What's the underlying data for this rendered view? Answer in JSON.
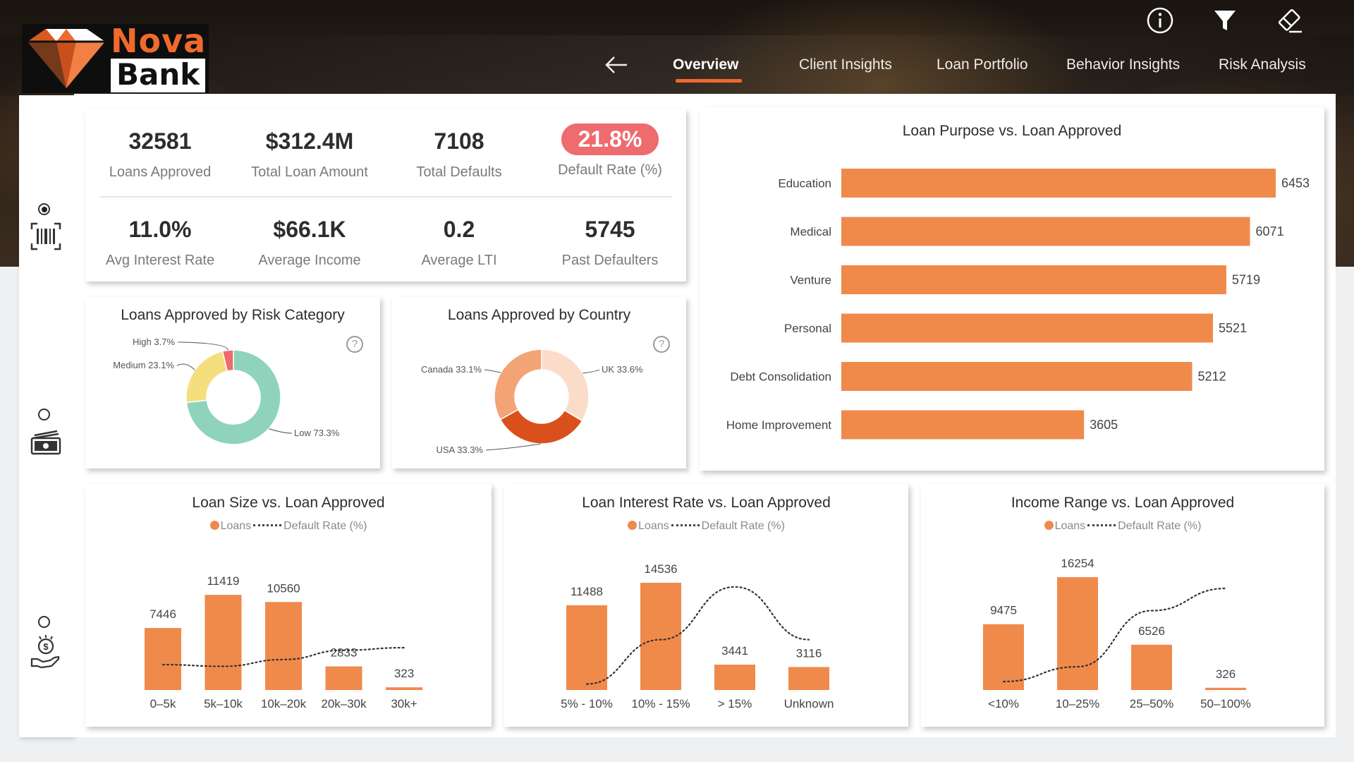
{
  "brand": {
    "line1": "Nova",
    "line2": "Bank"
  },
  "top_icons": [
    "info-icon",
    "filter-icon",
    "eraser-icon"
  ],
  "nav": {
    "tabs": [
      {
        "label": "Overview",
        "active": true
      },
      {
        "label": "Client Insights",
        "active": false
      },
      {
        "label": "Loan Portfolio",
        "active": false
      },
      {
        "label": "Behavior Insights",
        "active": false
      },
      {
        "label": "Risk Analysis",
        "active": false
      }
    ]
  },
  "sidebar": {
    "items": [
      {
        "icon": "barcode-icon",
        "selected": true
      },
      {
        "icon": "cash-icon",
        "selected": false
      },
      {
        "icon": "money-hand-icon",
        "selected": false
      }
    ]
  },
  "kpis": [
    {
      "value": "32581",
      "label": "Loans Approved"
    },
    {
      "value": "$312.4M",
      "label": "Total Loan Amount"
    },
    {
      "value": "7108",
      "label": "Total Defaults"
    },
    {
      "value": "21.8%",
      "label": "Default Rate (%)",
      "highlight": "#ee6b6e"
    },
    {
      "value": "11.0%",
      "label": "Avg Interest Rate"
    },
    {
      "value": "$66.1K",
      "label": "Average Income"
    },
    {
      "value": "0.2",
      "label": "Average LTI"
    },
    {
      "value": "5745",
      "label": "Past Defaulters"
    }
  ],
  "colors": {
    "accent": "#ef6a2c",
    "bar": "#f08a4b",
    "risk_low": "#8fd3bd",
    "risk_medium": "#f5de7d",
    "risk_high": "#ee6b6e",
    "country_uk": "#fbdcc8",
    "country_canada": "#f3a477",
    "country_usa": "#d9501c"
  },
  "legend": {
    "loans": "Loans",
    "default_rate": "Default Rate (%)"
  },
  "chart_data": [
    {
      "id": "risk",
      "type": "pie",
      "title": "Loans Approved by Risk Category",
      "donut": true,
      "slices": [
        {
          "label": "Low",
          "value": 73.3,
          "text": "Low 73.3%"
        },
        {
          "label": "Medium",
          "value": 23.1,
          "text": "Medium 23.1%"
        },
        {
          "label": "High",
          "value": 3.7,
          "text": "High 3.7%"
        }
      ]
    },
    {
      "id": "country",
      "type": "pie",
      "title": "Loans Approved by Country",
      "donut": true,
      "slices": [
        {
          "label": "UK",
          "value": 33.6,
          "text": "UK 33.6%"
        },
        {
          "label": "USA",
          "value": 33.3,
          "text": "USA 33.3%"
        },
        {
          "label": "Canada",
          "value": 33.1,
          "text": "Canada 33.1%"
        }
      ]
    },
    {
      "id": "purpose",
      "type": "bar",
      "orientation": "horizontal",
      "title": "Loan Purpose vs. Loan Approved",
      "categories": [
        "Education",
        "Medical",
        "Venture",
        "Personal",
        "Debt Consolidation",
        "Home Improvement"
      ],
      "values": [
        6453,
        6071,
        5719,
        5521,
        5212,
        3605
      ],
      "xlim": [
        0,
        6453
      ]
    },
    {
      "id": "size",
      "type": "bar",
      "title": "Loan Size vs. Loan Approved",
      "categories": [
        "0–5k",
        "5k–10k",
        "10k–20k",
        "20k–30k",
        "30k+"
      ],
      "series": [
        {
          "name": "Loans",
          "values": [
            7446,
            11419,
            10560,
            2833,
            323
          ]
        },
        {
          "name": "Default Rate (%)",
          "type": "line",
          "style": "dotted",
          "values": [
            0.3,
            0.28,
            0.36,
            0.47,
            0.5
          ]
        }
      ],
      "ylim": [
        0,
        16254
      ]
    },
    {
      "id": "interest",
      "type": "bar",
      "title": "Loan Interest Rate vs. Loan Approved",
      "categories": [
        "5% - 10%",
        "10% - 15%",
        "> 15%",
        "Unknown"
      ],
      "series": [
        {
          "name": "Loans",
          "values": [
            11488,
            14536,
            3441,
            3116
          ]
        },
        {
          "name": "Default Rate (%)",
          "type": "line",
          "style": "dotted",
          "values": [
            0.05,
            0.42,
            0.86,
            0.42
          ]
        }
      ],
      "ylim": [
        0,
        16254
      ]
    },
    {
      "id": "income",
      "type": "bar",
      "title": "Income Range vs. Loan Approved",
      "categories": [
        "<10%",
        "10–25%",
        "25–50%",
        "50–100%"
      ],
      "series": [
        {
          "name": "Loans",
          "values": [
            9475,
            16254,
            6526,
            326
          ]
        },
        {
          "name": "Default Rate (%)",
          "type": "line",
          "style": "dotted",
          "values": [
            0.08,
            0.22,
            0.75,
            0.96
          ]
        }
      ],
      "ylim": [
        0,
        16254
      ]
    }
  ]
}
